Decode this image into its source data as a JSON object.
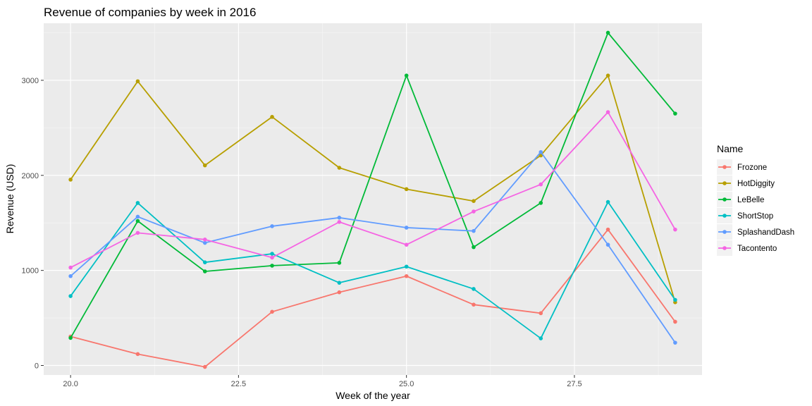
{
  "chart_data": {
    "type": "line",
    "title": "Revenue of companies by week in 2016",
    "xlabel": "Week of the year",
    "ylabel": "Revenue (USD)",
    "xlim": [
      19.6,
      29.4
    ],
    "ylim": [
      -100,
      3600
    ],
    "x_ticks": [
      20.0,
      22.5,
      25.0,
      27.5
    ],
    "x_tick_labels": [
      "20.0",
      "22.5",
      "25.0",
      "27.5"
    ],
    "y_ticks": [
      0,
      1000,
      2000,
      3000
    ],
    "y_tick_labels": [
      "0",
      "1000",
      "2000",
      "3000"
    ],
    "grid": true,
    "legend_title": "Name",
    "legend_position": "right",
    "x": [
      20,
      21,
      22,
      23,
      24,
      25,
      26,
      27,
      28,
      29
    ],
    "series": [
      {
        "name": "Frozone",
        "color": "#F8766D",
        "values": [
          305,
          120,
          -15,
          565,
          770,
          940,
          640,
          550,
          1430,
          460
        ]
      },
      {
        "name": "HotDiggity",
        "color": "#B79F00",
        "values": [
          1955,
          2990,
          2105,
          2615,
          2080,
          1855,
          1730,
          2210,
          3050,
          665
        ]
      },
      {
        "name": "LeBelle",
        "color": "#00BA38",
        "values": [
          290,
          1520,
          990,
          1050,
          1080,
          3050,
          1245,
          1710,
          3500,
          2650
        ]
      },
      {
        "name": "ShortStop",
        "color": "#00BFC4",
        "values": [
          730,
          1710,
          1085,
          1175,
          870,
          1040,
          805,
          285,
          1720,
          690
        ]
      },
      {
        "name": "SplashandDash",
        "color": "#619CFF",
        "values": [
          940,
          1565,
          1290,
          1465,
          1555,
          1450,
          1415,
          2245,
          1270,
          240
        ]
      },
      {
        "name": "Tacontento",
        "color": "#F564E3",
        "values": [
          1030,
          1395,
          1325,
          1135,
          1510,
          1270,
          1620,
          1905,
          2665,
          1430
        ]
      }
    ]
  }
}
